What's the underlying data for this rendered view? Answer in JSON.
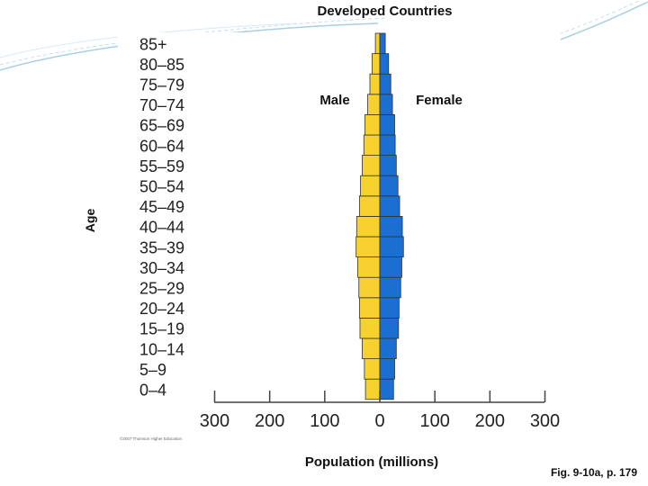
{
  "slide": {
    "title": "Developed Countries",
    "caption": "Fig. 9-10a, p. 179"
  },
  "chart_data": {
    "type": "bar",
    "orientation": "horizontal-population-pyramid",
    "title": "Developed Countries",
    "xlabel": "Population (millions)",
    "ylabel": "Age",
    "xlim": [
      -300,
      300
    ],
    "x_ticks": [
      -300,
      -200,
      -100,
      0,
      100,
      200,
      300
    ],
    "x_tick_labels": [
      "300",
      "200",
      "100",
      "0",
      "100",
      "200",
      "300"
    ],
    "categories": [
      "0–4",
      "5–9",
      "10–14",
      "15–19",
      "20–24",
      "25–29",
      "30–34",
      "35–39",
      "40–44",
      "45–49",
      "50–54",
      "55–59",
      "60–64",
      "65–69",
      "70–74",
      "75–79",
      "80–85",
      "85+"
    ],
    "series": [
      {
        "name": "Male",
        "color": "#f7d22e",
        "values": [
          26,
          28,
          32,
          36,
          37,
          38,
          40,
          43,
          42,
          37,
          35,
          32,
          29,
          27,
          22,
          18,
          14,
          8
        ]
      },
      {
        "name": "Female",
        "color": "#1a6fd1",
        "values": [
          25,
          27,
          30,
          34,
          35,
          38,
          40,
          43,
          41,
          36,
          33,
          30,
          28,
          27,
          23,
          20,
          16,
          10
        ]
      }
    ],
    "copyright": "©2007 Thomson Higher Education"
  }
}
